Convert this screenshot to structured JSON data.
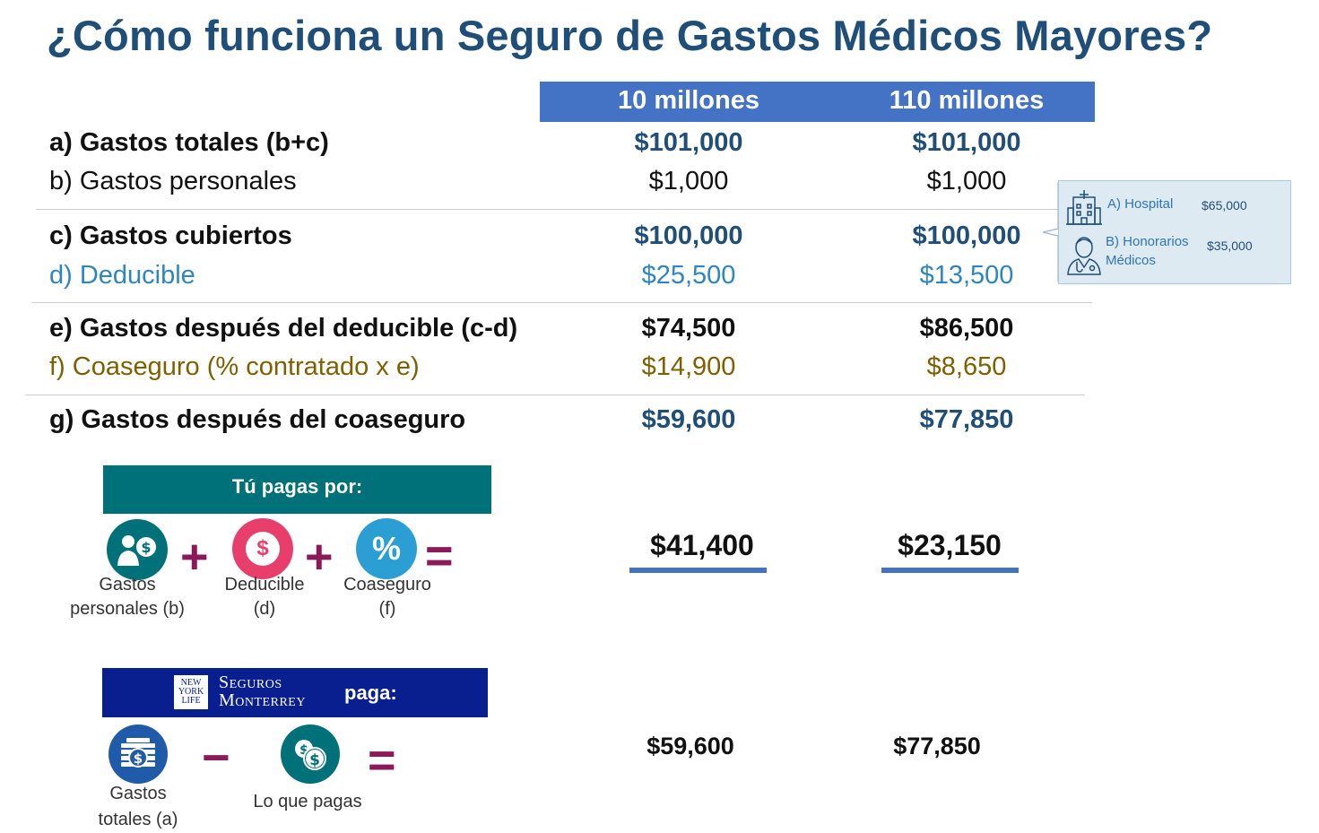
{
  "title": "¿Cómo funciona un Seguro de Gastos Médicos Mayores?",
  "columns": [
    "10 millones",
    "110 millones"
  ],
  "rows": [
    {
      "label": "a) Gastos totales (b+c)",
      "v1": "$101,000",
      "v2": "$101,000"
    },
    {
      "label": "b) Gastos personales",
      "v1": "$1,000",
      "v2": "$1,000"
    },
    {
      "label": "c) Gastos cubiertos",
      "v1": "$100,000",
      "v2": "$100,000"
    },
    {
      "label": "d) Deducible",
      "v1": "$25,500",
      "v2": "$13,500"
    },
    {
      "label": "e) Gastos después del deducible (c-d)",
      "v1": "$74,500",
      "v2": "$86,500"
    },
    {
      "label": "f) Coaseguro (% contratado x e)",
      "v1": "$14,900",
      "v2": "$8,650"
    },
    {
      "label": "g) Gastos después del coaseguro",
      "v1": "$59,600",
      "v2": "$77,850"
    }
  ],
  "callout": {
    "hospital_label": "A) Hospital",
    "hospital_value": "$65,000",
    "honorarios_label_1": "B) Honorarios",
    "honorarios_label_2": "Médicos",
    "honorarios_value": "$35,000"
  },
  "you_pay": {
    "banner": "Tú pagas por:",
    "gastos_caption_1": "Gastos",
    "gastos_caption_2": "personales (b)",
    "deducible_caption_1": "Deducible",
    "deducible_caption_2": "(d)",
    "coaseguro_caption_1": "Coaseguro",
    "coaseguro_caption_2": "(f)",
    "percent_symbol": "%",
    "dollar_symbol": "$",
    "plus": "+",
    "equals": "=",
    "total_1": "$41,400",
    "total_2": "$23,150"
  },
  "insurer_pays": {
    "logo_line_1": "NEW",
    "logo_line_2": "YORK",
    "logo_line_3": "LIFE",
    "brand_1": "Seguros",
    "brand_2": "Monterrey",
    "banner_suffix": "paga:",
    "gastos_caption_1": "Gastos",
    "gastos_caption_2": "totales (a)",
    "lo_que_pagas": "Lo que pagas",
    "minus": "−",
    "equals": "=",
    "total_1": "$59,600",
    "total_2": "$77,850"
  },
  "colors": {
    "title": "#1f4e79",
    "header_bar": "#4472c4",
    "teal": "#007079",
    "pink": "#e83e6c",
    "cyan": "#2b9fd3",
    "navy_banner": "#0a1f8f",
    "operator": "#8b1a5a",
    "olive": "#7f6000"
  }
}
